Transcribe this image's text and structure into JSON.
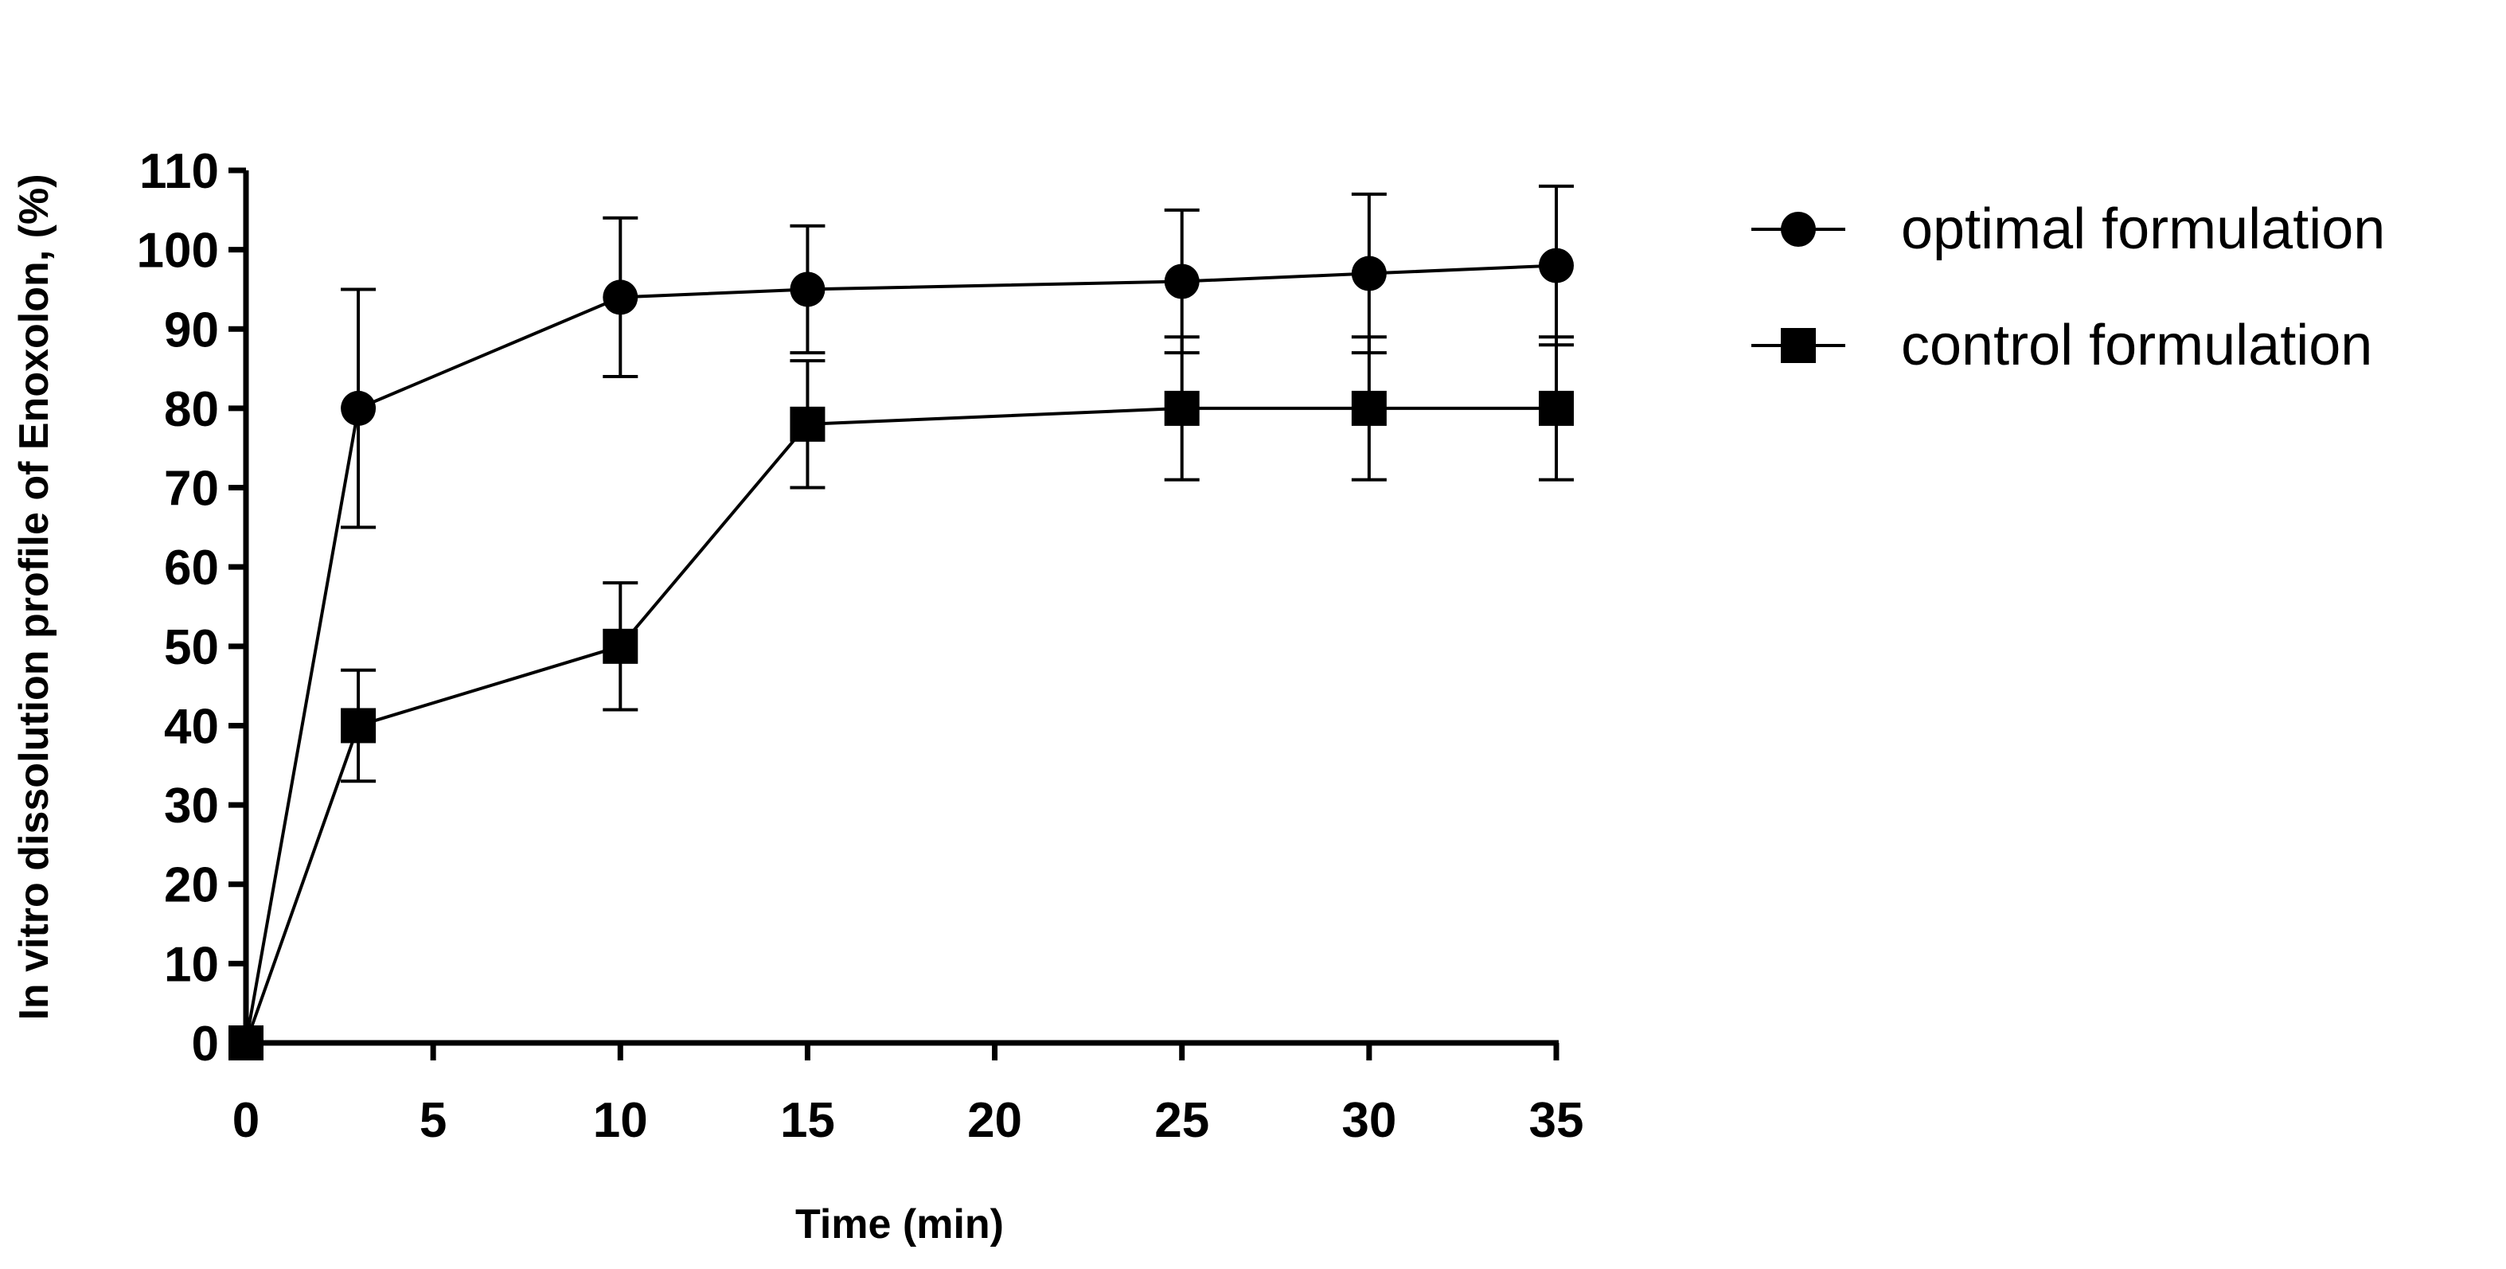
{
  "chart_data": {
    "type": "line",
    "title": "",
    "xlabel": "Time (min)",
    "ylabel": "In vitro dissolution profile of Enoxolon, (%)",
    "xlim": [
      0,
      35
    ],
    "ylim": [
      0,
      110
    ],
    "x_ticks": [
      0,
      5,
      10,
      15,
      20,
      25,
      30,
      35
    ],
    "y_ticks": [
      0,
      10,
      20,
      30,
      40,
      50,
      60,
      70,
      80,
      90,
      100,
      110
    ],
    "legend_position": "top-right outside",
    "grid": false,
    "series": [
      {
        "name": "optimal formulation",
        "marker": "circle",
        "x": [
          0,
          3,
          10,
          15,
          25,
          30,
          35
        ],
        "values": [
          0,
          80,
          94,
          95,
          96,
          97,
          98
        ],
        "error": [
          0,
          15,
          10,
          8,
          9,
          10,
          10
        ]
      },
      {
        "name": "control formulation",
        "marker": "square",
        "x": [
          0,
          3,
          10,
          15,
          25,
          30,
          35
        ],
        "values": [
          0,
          40,
          50,
          78,
          80,
          80,
          80
        ],
        "error": [
          0,
          7,
          8,
          8,
          9,
          9,
          9
        ]
      }
    ],
    "colors": {
      "line": "#000000",
      "marker": "#000000",
      "background": "#ffffff"
    }
  }
}
